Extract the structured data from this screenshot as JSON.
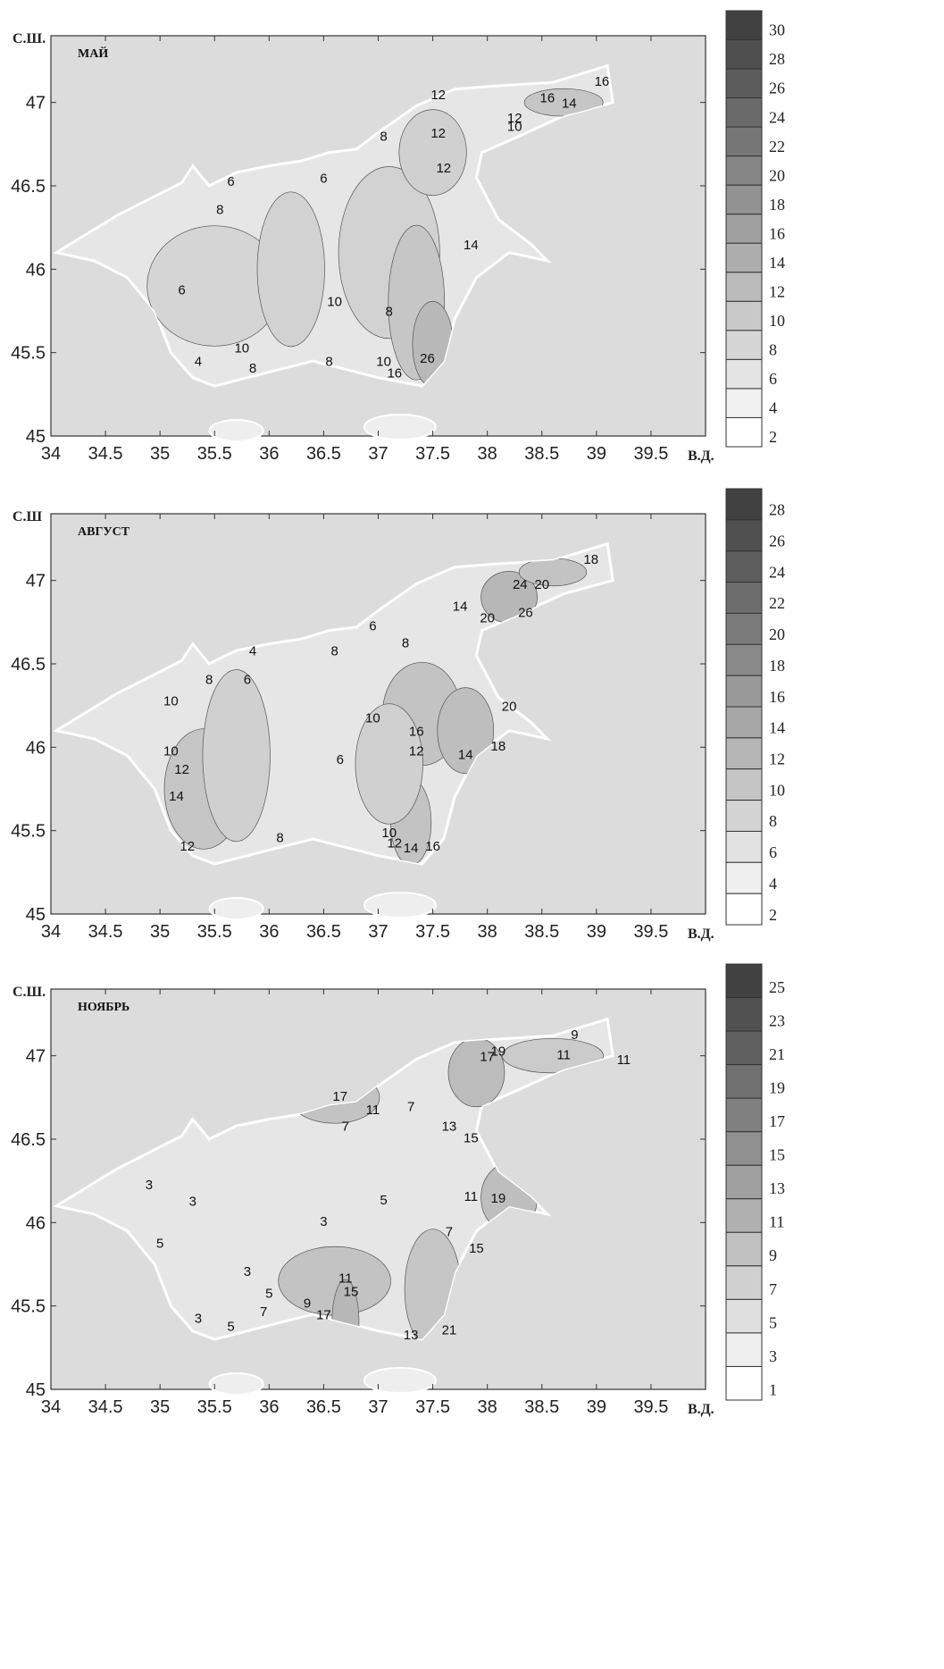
{
  "axes": {
    "lat_unit": "с.ш.",
    "lon_unit": "в.д.",
    "lon_ticks": [
      "34",
      "34.5",
      "35",
      "35.5",
      "36",
      "36.5",
      "37",
      "37.5",
      "38",
      "38.5",
      "39",
      "39.5"
    ],
    "lat_ticks": [
      "45",
      "45.5",
      "46",
      "46.5",
      "47"
    ]
  },
  "panels": [
    {
      "title": "МАЙ",
      "lat_label": "С.Ш.",
      "lon_label": "В.Д.",
      "legend": [
        "30",
        "28",
        "26",
        "24",
        "22",
        "20",
        "18",
        "16",
        "14",
        "12",
        "10",
        "8",
        "6",
        "4",
        "2"
      ],
      "contour_labels": [
        "16",
        "14",
        "16",
        "12",
        "10",
        "12",
        "8",
        "12",
        "12",
        "6",
        "6",
        "8",
        "14",
        "6",
        "10",
        "8",
        "10",
        "8",
        "10",
        "16",
        "26",
        "4",
        "8"
      ]
    },
    {
      "title": "АВГУСТ",
      "lat_label": "С.Ш",
      "lon_label": "В.Д.",
      "legend": [
        "28",
        "26",
        "24",
        "22",
        "20",
        "18",
        "16",
        "14",
        "12",
        "10",
        "8",
        "6",
        "4",
        "2"
      ],
      "contour_labels": [
        "18",
        "24",
        "20",
        "26",
        "20",
        "14",
        "6",
        "8",
        "8",
        "4",
        "6",
        "8",
        "10",
        "10",
        "16",
        "12",
        "14",
        "20",
        "18",
        "10",
        "12",
        "14",
        "6",
        "8",
        "10",
        "12",
        "14",
        "16",
        "12"
      ]
    },
    {
      "title": "НОЯБРЬ",
      "lat_label": "С.Ш.",
      "lon_label": "В.Д.",
      "legend": [
        "25",
        "23",
        "21",
        "19",
        "17",
        "15",
        "13",
        "11",
        "9",
        "7",
        "5",
        "3",
        "1"
      ],
      "contour_labels": [
        "9",
        "11",
        "11",
        "17",
        "19",
        "17",
        "11",
        "7",
        "7",
        "13",
        "15",
        "3",
        "3",
        "5",
        "11",
        "19",
        "3",
        "7",
        "15",
        "5",
        "3",
        "5",
        "11",
        "15",
        "9",
        "7",
        "17",
        "5",
        "3",
        "13",
        "21"
      ]
    }
  ]
}
